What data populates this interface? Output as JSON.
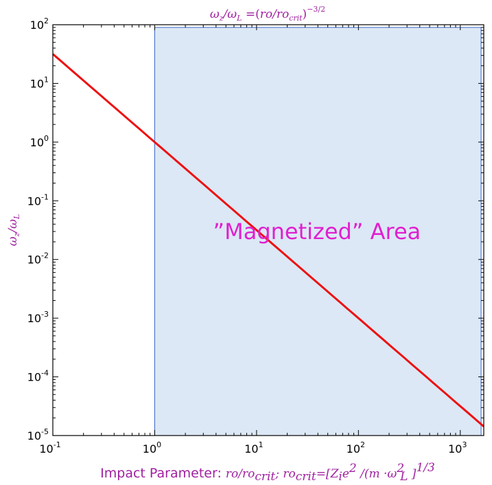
{
  "chart_data": {
    "type": "line",
    "title": "ω_z/ω_L = (ro/ro_crit)^(-3/2)",
    "xlabel": "Impact Parameter: ro/ro_crit; ro_crit = [Z_i e^2 /(m·ω_L^2)]^(1/3)",
    "ylabel": "ω_z/ω_L",
    "x_scale": "log",
    "y_scale": "log",
    "xlim": [
      0.1,
      1700
    ],
    "ylim": [
      1e-05,
      100
    ],
    "x_ticks": [
      0.1,
      1,
      10,
      100,
      1000
    ],
    "y_ticks": [
      1e-05,
      0.0001,
      0.001,
      0.01,
      0.1,
      1,
      10,
      100
    ],
    "grid": false,
    "series": [
      {
        "formula": "y = x^(-3/2)",
        "exponent": -1.5,
        "color": "#ee1111",
        "points": [
          [
            0.1,
            31.62
          ],
          [
            1,
            1
          ],
          [
            10,
            0.03162
          ],
          [
            100,
            0.001
          ],
          [
            1000,
            3.162e-05
          ],
          [
            1700,
            1.427e-05
          ]
        ]
      }
    ],
    "shaded_region": {
      "x_range": [
        1,
        1600
      ],
      "y_range": [
        1e-05,
        90
      ],
      "fill": "#dce8f5",
      "stroke": "#3a63c6"
    },
    "annotation": {
      "text": "”Magnetized” Area",
      "x": 10,
      "y": 0.03,
      "color": "#e020d0"
    },
    "label_color": "#a020a0"
  }
}
